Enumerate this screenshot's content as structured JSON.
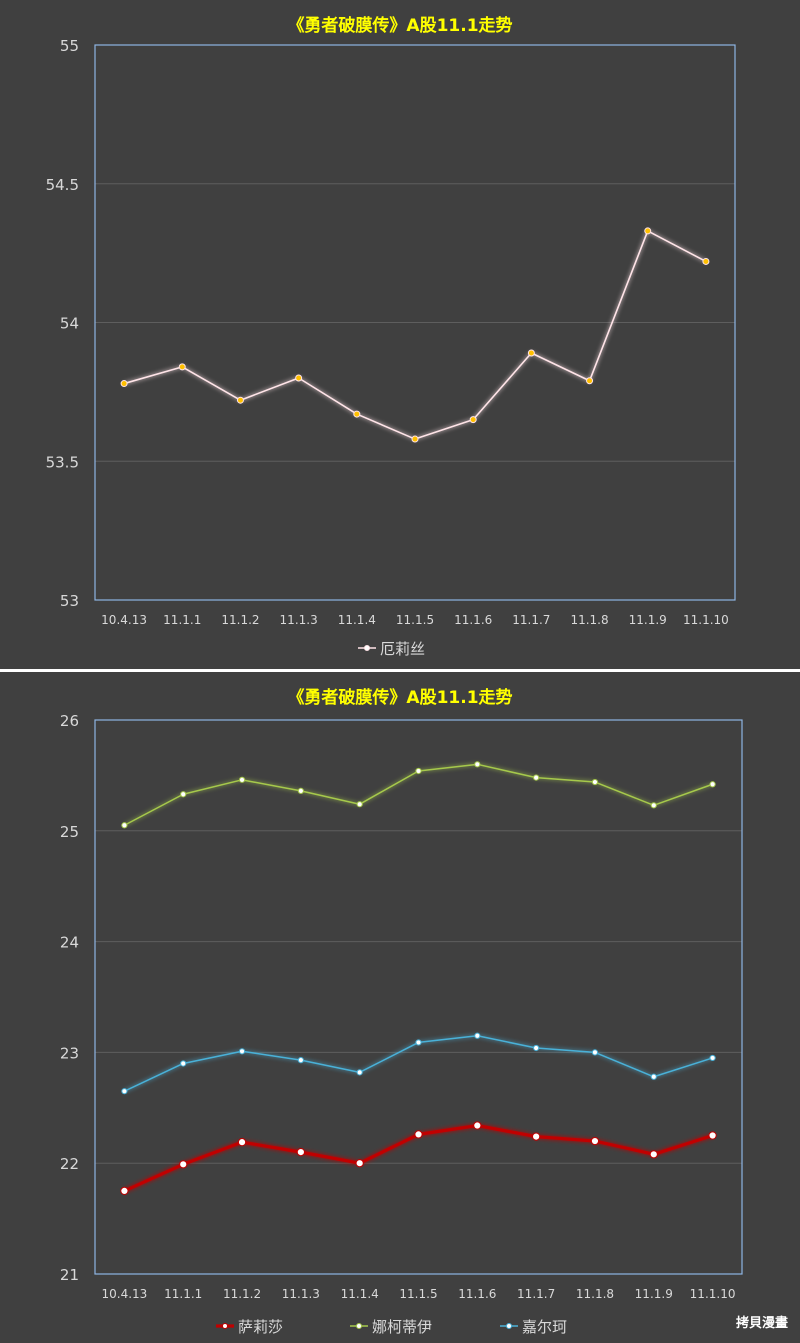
{
  "chart_data": [
    {
      "type": "line",
      "title": "《勇者破膜传》A股11.1走势",
      "categories": [
        "10.4.13",
        "11.1.1",
        "11.1.2",
        "11.1.3",
        "11.1.4",
        "11.1.5",
        "11.1.6",
        "11.1.7",
        "11.1.8",
        "11.1.9",
        "11.1.10"
      ],
      "ylim": [
        53,
        55
      ],
      "yticks": [
        "53",
        "53.5",
        "54",
        "54.5",
        "55"
      ],
      "grid": true,
      "legend_position": "bottom",
      "series": [
        {
          "name": "厄莉丝",
          "color": "#ffe4e8",
          "values": [
            53.78,
            53.84,
            53.72,
            53.8,
            53.67,
            53.58,
            53.65,
            53.89,
            53.79,
            54.33,
            54.22
          ]
        }
      ]
    },
    {
      "type": "line",
      "title": "《勇者破膜传》A股11.1走势",
      "categories": [
        "10.4.13",
        "11.1.1",
        "11.1.2",
        "11.1.3",
        "11.1.4",
        "11.1.5",
        "11.1.6",
        "11.1.7",
        "11.1.8",
        "11.1.9",
        "11.1.10"
      ],
      "ylim": [
        21,
        26
      ],
      "yticks": [
        "21",
        "22",
        "23",
        "24",
        "25",
        "26"
      ],
      "grid": true,
      "legend_position": "bottom",
      "series": [
        {
          "name": "萨莉莎",
          "color": "#c00000",
          "values": [
            21.75,
            21.99,
            22.19,
            22.1,
            22.0,
            22.26,
            22.34,
            22.24,
            22.2,
            22.08,
            22.25
          ]
        },
        {
          "name": "娜柯蒂伊",
          "color": "#a6c94c",
          "values": [
            25.05,
            25.33,
            25.46,
            25.36,
            25.24,
            25.54,
            25.6,
            25.48,
            25.44,
            25.23,
            25.42
          ]
        },
        {
          "name": "嘉尔珂",
          "color": "#4ab1d8",
          "values": [
            22.65,
            22.9,
            23.01,
            22.93,
            22.82,
            23.09,
            23.15,
            23.04,
            23.0,
            22.78,
            22.95
          ]
        }
      ]
    }
  ],
  "watermark": "拷貝漫畫"
}
